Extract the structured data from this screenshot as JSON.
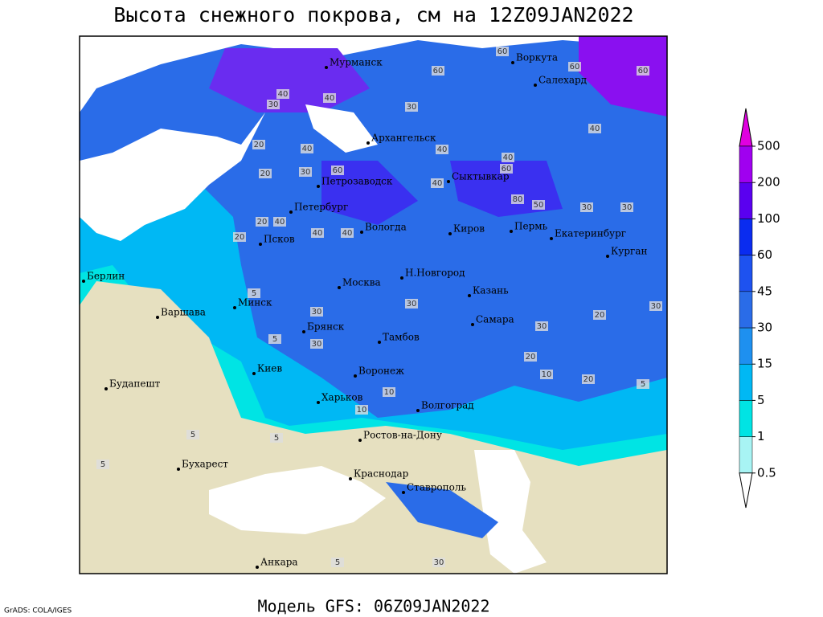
{
  "title": "Высота снежного покрова, см на 12Z09JAN2022",
  "footer": "Модель GFS: 06Z09JAN2022",
  "credit": "GrADS: COLA/IGES",
  "colorbar": {
    "levels": [
      0.5,
      1,
      5,
      15,
      30,
      45,
      60,
      100,
      200,
      500
    ],
    "colors": [
      "#ffffff",
      "#a8f4f4",
      "#00e4e4",
      "#00b8f4",
      "#1e90f0",
      "#2a6ce8",
      "#1e52f0",
      "#0a2cf0",
      "#5a00f0",
      "#a000f0",
      "#e000e0"
    ]
  },
  "cities": [
    "Мурманск",
    "Воркута",
    "Салехард",
    "Архангельск",
    "Петрозаводск",
    "Сыктывкар",
    "Петербург",
    "Вологда",
    "Киров",
    "Пермь",
    "Екатеринбург",
    "Курган",
    "Псков",
    "Берлин",
    "Н.Новгород",
    "Москва",
    "Казань",
    "Минск",
    "Варшава",
    "Самара",
    "Брянск",
    "Тамбов",
    "Киев",
    "Воронеж",
    "Будапешт",
    "Харьков",
    "Волгоград",
    "Ростов-на-Дону",
    "Бухарест",
    "Краснодар",
    "Ставрополь",
    "Анкара"
  ],
  "contour_labels": [
    60,
    60,
    60,
    60,
    40,
    30,
    40,
    30,
    40,
    20,
    40,
    20,
    30,
    40,
    60,
    40,
    40,
    60,
    80,
    50,
    30,
    30,
    20,
    40,
    40,
    40,
    5,
    5,
    30,
    30,
    30,
    20,
    30,
    30,
    10,
    20,
    5,
    5,
    10,
    20,
    10,
    5,
    5,
    5,
    30,
    20
  ]
}
